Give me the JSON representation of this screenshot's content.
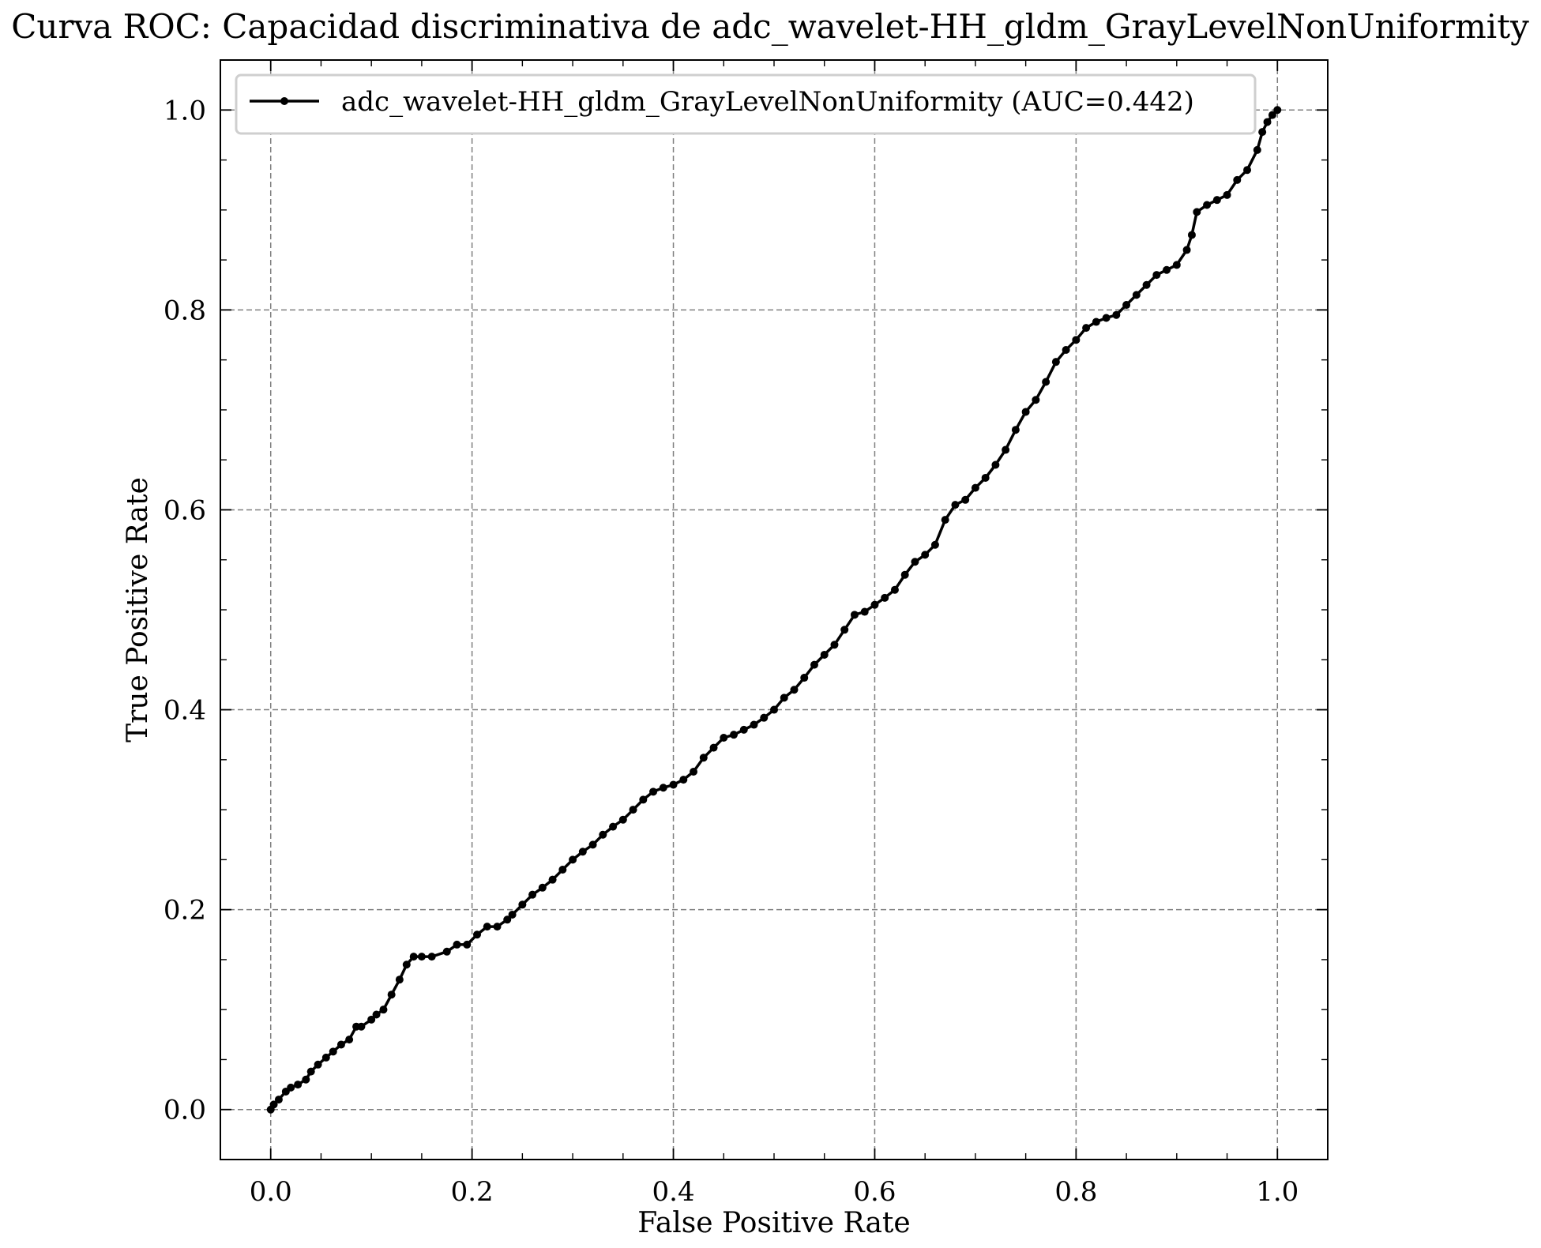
{
  "chart_data": {
    "type": "line",
    "title": "Curva ROC: Capacidad discriminativa de adc_wavelet-HH_gldm_GrayLevelNonUniformity",
    "xlabel": "False Positive Rate",
    "ylabel": "True Positive Rate",
    "xlim": [
      -0.05,
      1.05
    ],
    "ylim": [
      -0.05,
      1.05
    ],
    "xticks": [
      0.0,
      0.2,
      0.4,
      0.6,
      0.8,
      1.0
    ],
    "yticks": [
      0.0,
      0.2,
      0.4,
      0.6,
      0.8,
      1.0
    ],
    "xtick_labels": [
      "0.0",
      "0.2",
      "0.4",
      "0.6",
      "0.8",
      "1.0"
    ],
    "ytick_labels": [
      "0.0",
      "0.2",
      "0.4",
      "0.6",
      "0.8",
      "1.0"
    ],
    "grid": true,
    "legend_position": "top",
    "series": [
      {
        "name": "adc_wavelet-HH_gldm_GrayLevelNonUniformity (AUC=0.442)",
        "color": "#000000",
        "marker": "dot",
        "x": [
          0.0,
          0.003,
          0.008,
          0.015,
          0.02,
          0.027,
          0.035,
          0.04,
          0.047,
          0.055,
          0.062,
          0.07,
          0.078,
          0.085,
          0.09,
          0.1,
          0.105,
          0.112,
          0.12,
          0.128,
          0.135,
          0.142,
          0.15,
          0.16,
          0.175,
          0.185,
          0.195,
          0.205,
          0.215,
          0.225,
          0.235,
          0.24,
          0.25,
          0.26,
          0.27,
          0.28,
          0.29,
          0.3,
          0.31,
          0.32,
          0.33,
          0.34,
          0.35,
          0.36,
          0.37,
          0.38,
          0.39,
          0.4,
          0.41,
          0.42,
          0.43,
          0.44,
          0.45,
          0.46,
          0.47,
          0.48,
          0.49,
          0.5,
          0.51,
          0.52,
          0.53,
          0.54,
          0.55,
          0.56,
          0.57,
          0.58,
          0.59,
          0.6,
          0.61,
          0.62,
          0.63,
          0.64,
          0.65,
          0.66,
          0.67,
          0.68,
          0.69,
          0.7,
          0.71,
          0.72,
          0.73,
          0.74,
          0.75,
          0.76,
          0.77,
          0.78,
          0.79,
          0.8,
          0.81,
          0.82,
          0.83,
          0.84,
          0.85,
          0.86,
          0.87,
          0.88,
          0.89,
          0.9,
          0.91,
          0.915,
          0.92,
          0.93,
          0.94,
          0.95,
          0.96,
          0.97,
          0.98,
          0.985,
          0.99,
          0.995,
          1.0
        ],
        "y": [
          0.0,
          0.005,
          0.01,
          0.018,
          0.022,
          0.025,
          0.03,
          0.038,
          0.045,
          0.052,
          0.058,
          0.065,
          0.07,
          0.083,
          0.083,
          0.09,
          0.095,
          0.1,
          0.115,
          0.13,
          0.145,
          0.153,
          0.153,
          0.153,
          0.158,
          0.165,
          0.165,
          0.175,
          0.183,
          0.183,
          0.19,
          0.195,
          0.205,
          0.215,
          0.222,
          0.23,
          0.24,
          0.25,
          0.258,
          0.265,
          0.275,
          0.283,
          0.29,
          0.3,
          0.31,
          0.318,
          0.322,
          0.325,
          0.33,
          0.338,
          0.352,
          0.362,
          0.372,
          0.375,
          0.38,
          0.385,
          0.392,
          0.4,
          0.412,
          0.42,
          0.432,
          0.445,
          0.455,
          0.465,
          0.48,
          0.495,
          0.498,
          0.505,
          0.512,
          0.52,
          0.535,
          0.548,
          0.555,
          0.565,
          0.59,
          0.605,
          0.61,
          0.622,
          0.632,
          0.645,
          0.66,
          0.68,
          0.698,
          0.71,
          0.728,
          0.748,
          0.76,
          0.77,
          0.782,
          0.788,
          0.792,
          0.795,
          0.805,
          0.815,
          0.825,
          0.835,
          0.84,
          0.845,
          0.86,
          0.875,
          0.898,
          0.905,
          0.91,
          0.915,
          0.93,
          0.94,
          0.96,
          0.978,
          0.988,
          0.995,
          1.0
        ]
      }
    ]
  }
}
